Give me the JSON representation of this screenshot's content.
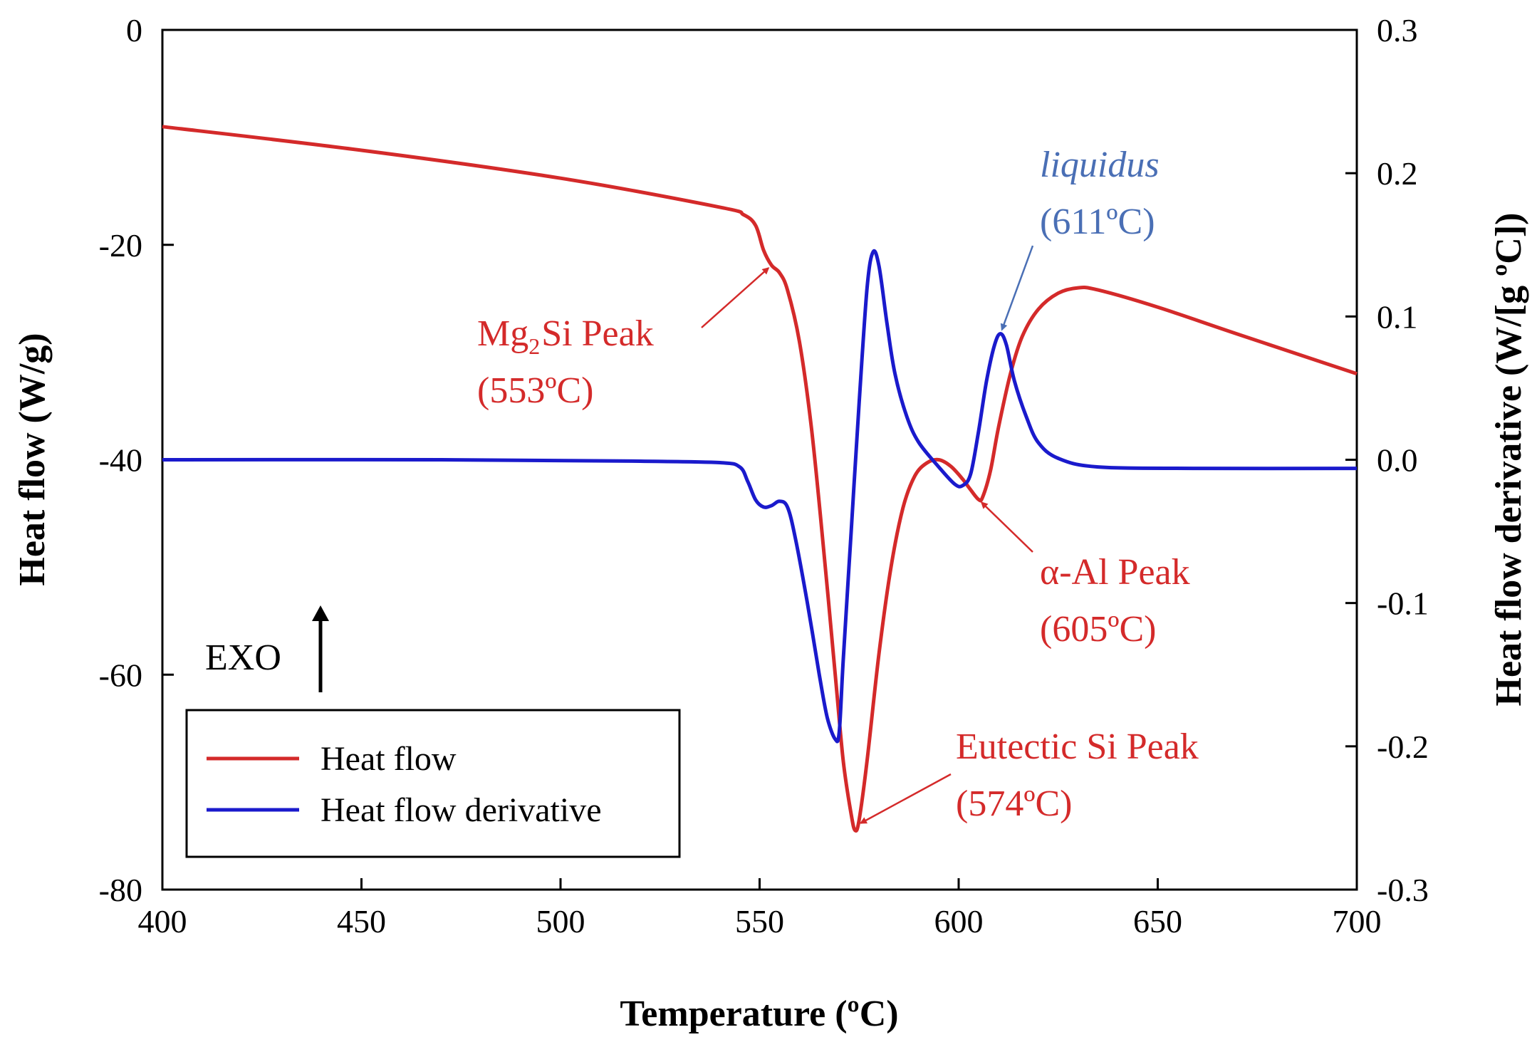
{
  "colors": {
    "heat_flow": "#d42a2a",
    "derivative": "#1a1acc",
    "annotation_red": "#d42a2a",
    "annotation_blue": "#4a6fb5",
    "axis": "#000000"
  },
  "chart_data": {
    "type": "line",
    "xlabel": "Temperature (ºC)",
    "ylabel": "Heat flow (W/g)",
    "y2label": "Heat flow derivative (W/[g ºC])",
    "xlim": [
      400,
      700
    ],
    "ylim": [
      -80,
      0
    ],
    "y2lim": [
      -0.3,
      0.3
    ],
    "xticks": [
      "400",
      "450",
      "500",
      "550",
      "600",
      "650",
      "700"
    ],
    "yticks": [
      "0",
      "-20",
      "-40",
      "-60",
      "-80"
    ],
    "y2ticks": [
      "0.3",
      "0.2",
      "0.1",
      "0.0",
      "-0.1",
      "-0.2",
      "-0.3"
    ],
    "exo_label": "EXO",
    "legend": {
      "position": "bottom-left",
      "entries": [
        "Heat flow",
        "Heat flow derivative"
      ]
    },
    "series": [
      {
        "name": "Heat flow",
        "axis": "left",
        "points": [
          [
            400,
            -9.0
          ],
          [
            450,
            -11.2
          ],
          [
            500,
            -13.8
          ],
          [
            540,
            -16.5
          ],
          [
            546,
            -17.2
          ],
          [
            549,
            -18.2
          ],
          [
            551,
            -20.5
          ],
          [
            553,
            -21.9
          ],
          [
            555,
            -22.6
          ],
          [
            557,
            -24.2
          ],
          [
            560,
            -29
          ],
          [
            563,
            -37
          ],
          [
            566,
            -48
          ],
          [
            569,
            -60
          ],
          [
            571,
            -68
          ],
          [
            573,
            -73
          ],
          [
            574,
            -74.5
          ],
          [
            575,
            -73.5
          ],
          [
            577,
            -68
          ],
          [
            580,
            -58
          ],
          [
            583,
            -50
          ],
          [
            586,
            -44.5
          ],
          [
            589,
            -41.5
          ],
          [
            592,
            -40.3
          ],
          [
            595,
            -40.0
          ],
          [
            598,
            -40.6
          ],
          [
            601,
            -41.8
          ],
          [
            603,
            -42.8
          ],
          [
            605,
            -43.7
          ],
          [
            606,
            -43.5
          ],
          [
            608,
            -41
          ],
          [
            610,
            -37
          ],
          [
            613,
            -32
          ],
          [
            616,
            -28.5
          ],
          [
            620,
            -26
          ],
          [
            625,
            -24.5
          ],
          [
            630,
            -24.0
          ],
          [
            635,
            -24.2
          ],
          [
            650,
            -25.8
          ],
          [
            670,
            -28.3
          ],
          [
            700,
            -32.0
          ]
        ]
      },
      {
        "name": "Heat flow derivative",
        "axis": "right",
        "points": [
          [
            400,
            0.0
          ],
          [
            470,
            0.0
          ],
          [
            520,
            -0.001
          ],
          [
            540,
            -0.002
          ],
          [
            545,
            -0.005
          ],
          [
            547,
            -0.015
          ],
          [
            549,
            -0.028
          ],
          [
            551,
            -0.033
          ],
          [
            553,
            -0.032
          ],
          [
            555,
            -0.029
          ],
          [
            557,
            -0.033
          ],
          [
            559,
            -0.055
          ],
          [
            562,
            -0.1
          ],
          [
            565,
            -0.15
          ],
          [
            567,
            -0.18
          ],
          [
            569,
            -0.195
          ],
          [
            570,
            -0.19
          ],
          [
            571,
            -0.14
          ],
          [
            573,
            -0.05
          ],
          [
            575,
            0.04
          ],
          [
            577,
            0.12
          ],
          [
            578.5,
            0.145
          ],
          [
            580,
            0.135
          ],
          [
            582,
            0.095
          ],
          [
            584,
            0.06
          ],
          [
            587,
            0.03
          ],
          [
            590,
            0.012
          ],
          [
            595,
            -0.005
          ],
          [
            599,
            -0.017
          ],
          [
            601,
            -0.018
          ],
          [
            603,
            -0.01
          ],
          [
            605,
            0.02
          ],
          [
            607,
            0.055
          ],
          [
            609,
            0.08
          ],
          [
            610.5,
            0.088
          ],
          [
            612,
            0.08
          ],
          [
            614,
            0.055
          ],
          [
            617,
            0.03
          ],
          [
            620,
            0.012
          ],
          [
            625,
            0.001
          ],
          [
            635,
            -0.005
          ],
          [
            660,
            -0.006
          ],
          [
            700,
            -0.006
          ]
        ]
      }
    ],
    "annotations": [
      {
        "id": "mg2si",
        "base": "Mg",
        "sub": "2",
        "rest": "Si Peak",
        "temp": "(553ºC)",
        "color": "red",
        "target": [
          553,
          -21.9
        ],
        "axis": "left"
      },
      {
        "id": "eutectic",
        "line1": "Eutectic Si Peak",
        "temp": "(574ºC)",
        "color": "red",
        "target": [
          574.5,
          -74
        ],
        "axis": "left"
      },
      {
        "id": "alpha-al",
        "line1": "α-Al Peak",
        "temp": "(605ºC)",
        "color": "red",
        "target": [
          605,
          -43.7
        ],
        "axis": "left"
      },
      {
        "id": "liquidus",
        "line1": "liquidus",
        "temp": "(611ºC)",
        "color": "blue",
        "target": [
          610.5,
          0.088
        ],
        "axis": "right"
      }
    ]
  }
}
